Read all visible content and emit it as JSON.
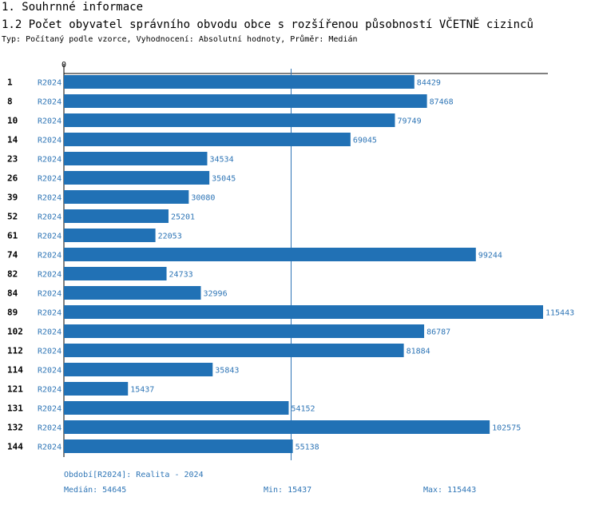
{
  "headings": {
    "section": "1. Souhrnné informace",
    "chart_title": "1.2 Počet obyvatel správního obvodu obce s rozšířenou působností VČETNĚ cizinců",
    "subtitle": "Typ: Počítaný podle vzorce, Vyhodnocení: Absolutní hodnoty, Průměr: Medián"
  },
  "chart_data": {
    "type": "bar",
    "orientation": "horizontal",
    "axis_zero_label": "0",
    "series_label": "R2024",
    "categories": [
      "1",
      "8",
      "10",
      "14",
      "23",
      "26",
      "39",
      "52",
      "61",
      "74",
      "82",
      "84",
      "89",
      "102",
      "112",
      "114",
      "121",
      "131",
      "132",
      "144"
    ],
    "values": [
      84429,
      87468,
      79749,
      69045,
      34534,
      35045,
      30080,
      25201,
      22053,
      99244,
      24733,
      32996,
      115443,
      86787,
      81884,
      35843,
      15437,
      54152,
      102575,
      55138
    ],
    "median": 54645,
    "bar_color": "#2171b5",
    "label_color": "#2e75b6"
  },
  "footer": {
    "period": "Období[R2024]: Realita - 2024",
    "median": "Medián: 54645",
    "min": "Min: 15437",
    "max": "Max: 115443"
  }
}
